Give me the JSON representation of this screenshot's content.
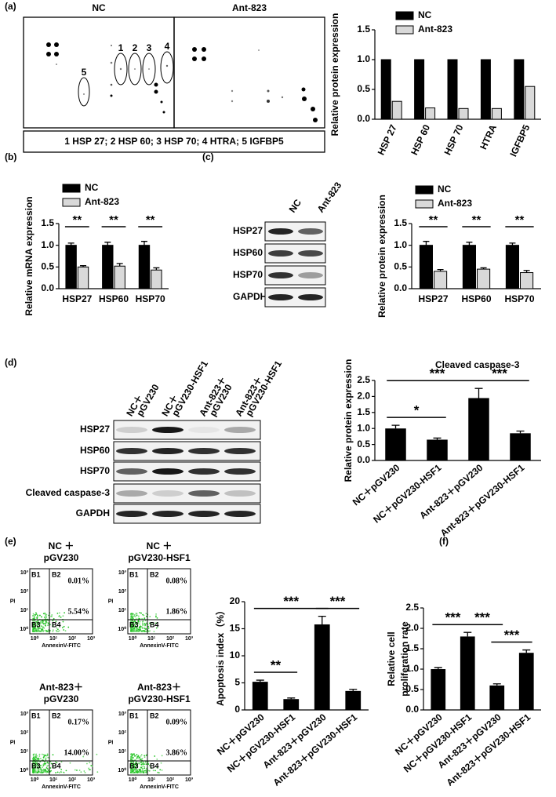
{
  "panel_labels": [
    "(a)",
    "(b)",
    "(c)",
    "(d)",
    "(e)",
    "(f)"
  ],
  "array": {
    "titles": [
      "NC",
      "Ant-823"
    ],
    "spot_labels": [
      "1",
      "2",
      "3",
      "4",
      "5"
    ],
    "key": "1 HSP 27; 2 HSP 60; 3 HSP 70; 4 HTRA; 5 IGFBP5"
  },
  "blot_c": {
    "lanes": [
      "NC",
      "Ant-823"
    ],
    "rows": [
      "HSP27",
      "HSP60",
      "HSP70",
      "GAPDH"
    ]
  },
  "blot_d": {
    "lanes": [
      [
        "NC＋",
        "pGV230"
      ],
      [
        "NC＋",
        "pGV230-HSF1"
      ],
      [
        "Ant-823＋",
        "pGV230"
      ],
      [
        "Ant-823＋",
        "pGV230-HSF1"
      ]
    ],
    "rows": [
      "HSP27",
      "HSP60",
      "HSP70",
      "Cleaved caspase-3",
      "GAPDH"
    ]
  },
  "flow": {
    "x_label": "AnnexinV-FITC",
    "y_label": "PI",
    "ticks": [
      "10⁰",
      "10¹",
      "10²",
      "10³"
    ],
    "quadrants": [
      "B1",
      "B2",
      "B3",
      "B4"
    ],
    "plots": [
      {
        "title": [
          "NC ＋",
          "pGV230"
        ],
        "upper_right": "0.01%",
        "lower_right": "5.54%"
      },
      {
        "title": [
          "NC ＋",
          "pGV230-HSF1"
        ],
        "upper_right": "0.08%",
        "lower_right": "1.86%"
      },
      {
        "title": [
          "Ant-823＋",
          "pGV230"
        ],
        "upper_right": "0.17%",
        "lower_right": "14.00%"
      },
      {
        "title": [
          "Ant-823＋",
          "pGV230-HSF1"
        ],
        "upper_right": "0.09%",
        "lower_right": "3.86%"
      }
    ]
  },
  "chart_data": [
    {
      "type": "bar",
      "ylabel": "Relative protein expression",
      "categories": [
        "HSP 27",
        "HSP 60",
        "HSP 70",
        "HTRA",
        "IGFBP5"
      ],
      "series": [
        {
          "name": "NC",
          "color": "#000000",
          "values": [
            1,
            1,
            1,
            1,
            1
          ]
        },
        {
          "name": "Ant-823",
          "color": "#d9d9d9",
          "values": [
            0.3,
            0.19,
            0.18,
            0.18,
            0.55
          ]
        }
      ],
      "ylim": [
        0,
        1.5
      ],
      "yticks": [
        {
          "value": 0,
          "label": "0.0"
        },
        0.5,
        {
          "value": 1,
          "label": "1.0"
        },
        1.5
      ],
      "legend": "top-left"
    },
    {
      "type": "bar",
      "ylabel": "Relative mRNA expression",
      "categories": [
        "HSP27",
        "HSP60",
        "HSP70"
      ],
      "series": [
        {
          "name": "NC",
          "color": "#000000",
          "values": [
            1,
            1,
            1
          ],
          "errors": [
            0.05,
            0.07,
            0.09
          ]
        },
        {
          "name": "Ant-823",
          "color": "#d9d9d9",
          "values": [
            0.5,
            0.52,
            0.43
          ],
          "errors": [
            0.03,
            0.06,
            0.05
          ]
        }
      ],
      "ylim": [
        0,
        1.5
      ],
      "yticks": [
        {
          "value": 0,
          "label": "0.0"
        },
        0.5,
        {
          "value": 1,
          "label": "1.0"
        },
        1.5
      ],
      "legend": "top-left",
      "significance": [
        "**",
        "**",
        "**"
      ]
    },
    {
      "type": "bar",
      "ylabel": "Relative protein expression",
      "categories": [
        "HSP27",
        "HSP60",
        "HSP70"
      ],
      "series": [
        {
          "name": "NC",
          "color": "#000000",
          "values": [
            1,
            1,
            1
          ],
          "errors": [
            0.09,
            0.07,
            0.05
          ]
        },
        {
          "name": "Ant-823",
          "color": "#d9d9d9",
          "values": [
            0.4,
            0.45,
            0.37
          ],
          "errors": [
            0.04,
            0.03,
            0.05
          ]
        }
      ],
      "ylim": [
        0,
        1.5
      ],
      "yticks": [
        {
          "value": 0,
          "label": "0.0"
        },
        0.5,
        {
          "value": 1,
          "label": "1.0"
        },
        1.5
      ],
      "legend": "top-left",
      "significance": [
        "**",
        "**",
        "**"
      ]
    },
    {
      "type": "bar",
      "title": "Cleaved caspase-3",
      "ylabel": "Relative protein expression",
      "categories": [
        "NC＋pGV230",
        "NC＋pGV230-HSF1",
        "Ant-823＋pGV230",
        "Ant-823＋pGV230-HSF1"
      ],
      "values": [
        1.0,
        0.65,
        1.95,
        0.85
      ],
      "errors": [
        0.1,
        0.05,
        0.3,
        0.07
      ],
      "color": "#000000",
      "ylim": [
        0,
        2.5
      ],
      "yticks": [
        {
          "value": 0,
          "label": "0.0"
        },
        0.5,
        {
          "value": 1,
          "label": "1.0"
        },
        1.5,
        {
          "value": 2,
          "label": "2.0"
        },
        2.5
      ],
      "comparisons": [
        {
          "label": "*",
          "categories": [
            0,
            1
          ]
        },
        {
          "label": "***",
          "categories": [
            2,
            3
          ]
        },
        {
          "label": "***",
          "categories": [
            0,
            2
          ]
        }
      ]
    },
    {
      "type": "bar",
      "ylabel": "Apoptosis index（%）",
      "categories": [
        "NC＋pGV230",
        "NC＋pGV230-HSF1",
        "Ant-823＋pGV230",
        "Ant-823＋pGV230-HSF1"
      ],
      "values": [
        5.2,
        2.0,
        15.8,
        3.5
      ],
      "errors": [
        0.3,
        0.2,
        1.5,
        0.3
      ],
      "color": "#000000",
      "ylim": [
        0,
        20
      ],
      "yticks": [
        0,
        5,
        10,
        15,
        20
      ],
      "comparisons": [
        {
          "label": "**",
          "categories": [
            0,
            1
          ]
        },
        {
          "label": "***",
          "categories": [
            2,
            3
          ]
        },
        {
          "label": "***",
          "categories": [
            0,
            2
          ]
        }
      ]
    },
    {
      "type": "bar",
      "ylabel": [
        "Relative cell",
        "proliferation rate"
      ],
      "categories": [
        "NC＋pGV230",
        "NC＋pGV230-HSF1",
        "Ant-823＋pGV230",
        "Ant-823＋pGV230-HSF1"
      ],
      "values": [
        1.0,
        1.8,
        0.6,
        1.4
      ],
      "errors": [
        0.04,
        0.1,
        0.04,
        0.07
      ],
      "color": "#000000",
      "ylim": [
        0,
        2.5
      ],
      "yticks": [
        {
          "value": 0,
          "label": "0.0"
        },
        0.5,
        {
          "value": 1,
          "label": "1.0"
        },
        1.5,
        {
          "value": 2,
          "label": "2.0"
        },
        2.5
      ],
      "comparisons": [
        {
          "label": "***",
          "categories": [
            0,
            1
          ]
        },
        {
          "label": "***",
          "categories": [
            1,
            2
          ]
        },
        {
          "label": "***",
          "categories": [
            2,
            3
          ]
        }
      ]
    }
  ]
}
